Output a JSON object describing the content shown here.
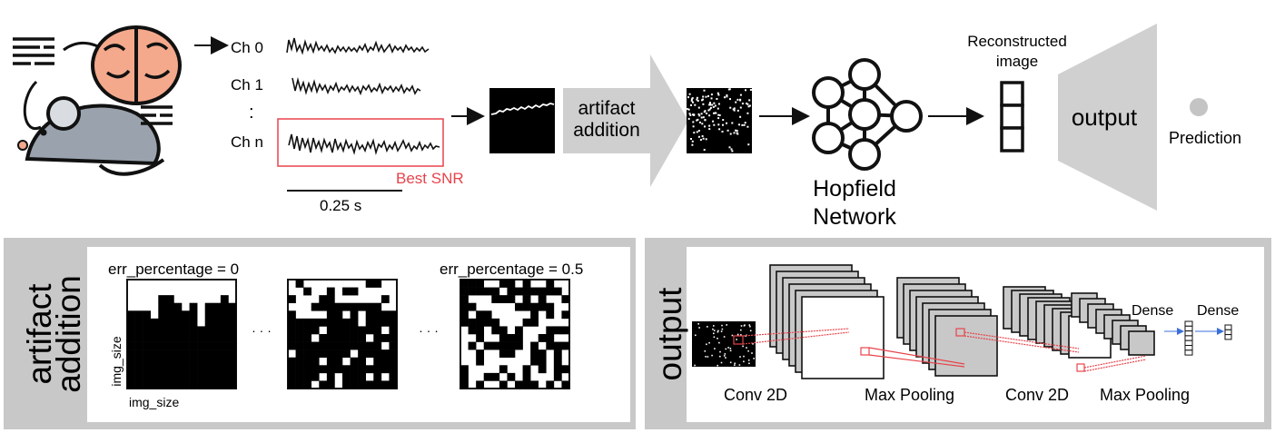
{
  "pipeline": {
    "channels": [
      "Ch 0",
      "Ch 1",
      ":",
      "Ch n"
    ],
    "best_snr_label": "Best SNR",
    "time_scale_label": "0.25 s",
    "artifact_step_line1": "artifact",
    "artifact_step_line2": "addition",
    "reconstructed_line1": "Reconstructed",
    "reconstructed_line2": "image",
    "output_label": "output",
    "prediction_label": "Prediction",
    "network_line1": "Hopfield",
    "network_line2": "Network"
  },
  "artifact_panel": {
    "title_line1": "artifact",
    "title_line2": "addition",
    "err_left_label": "err_percentage = 0",
    "err_right_label": "err_percentage = 0.5",
    "dots_1": "· · ·",
    "dots_2": "· · ·",
    "y_axis_label": "img_size",
    "x_axis_label": "img_size"
  },
  "output_panel": {
    "title": "output",
    "conv1_label": "Conv 2D",
    "pool1_label": "Max Pooling",
    "conv2_label": "Conv 2D",
    "pool2_label": "Max Pooling",
    "dense1_label": "Dense",
    "dense2_label": "Dense"
  },
  "colors": {
    "accent_red": "#e8434b",
    "panel_gray": "#c9c8c8",
    "layer_gray": "#c8c8c8",
    "brain_pink": "#f4a98c",
    "mouse_gray": "#9aa3ad",
    "arrow_gray": "#cfcfcf"
  }
}
